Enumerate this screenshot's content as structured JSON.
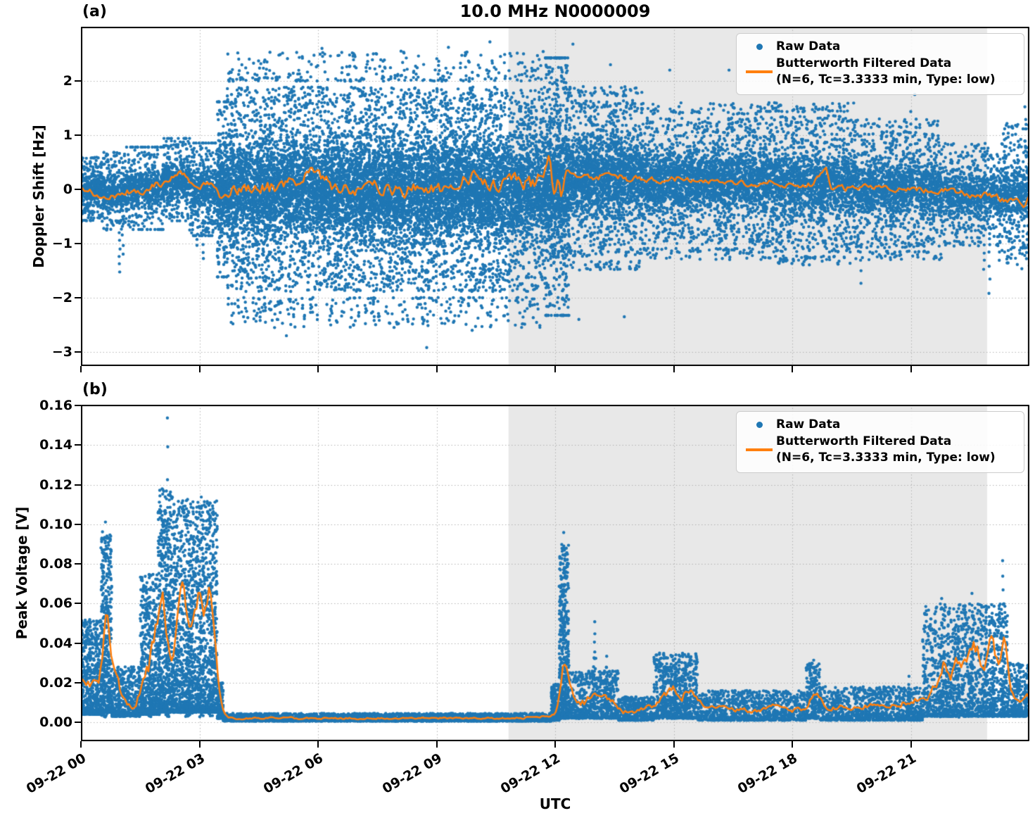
{
  "title": "10.0 MHz N0000009",
  "xlabel": "UTC",
  "colors": {
    "raw": "#1f77b4",
    "filtered": "#ff7f0e",
    "shade": "#e8e8e8",
    "grid": "#b5b5b5",
    "spine": "#000000",
    "background": "#ffffff"
  },
  "legend": {
    "raw_label": "Raw Data",
    "filtered_label": "Butterworth Filtered Data",
    "filtered_sublabel": "(N=6, Tc=3.3333 min, Type: low)"
  },
  "x_axis": {
    "label": "UTC",
    "range_hours": [
      0,
      24
    ],
    "tick_hours": [
      0,
      3,
      6,
      9,
      12,
      15,
      18,
      21
    ],
    "tick_labels": [
      "09-22 00",
      "09-22 03",
      "09-22 06",
      "09-22 09",
      "09-22 12",
      "09-22 15",
      "09-22 18",
      "09-22 21"
    ]
  },
  "shaded_region": {
    "start_hour": 10.82,
    "end_hour": 22.93
  },
  "chart_data": [
    {
      "type": "scatter",
      "panel_label": "(a)",
      "ylabel": "Doppler Shift [Hz]",
      "ylim": [
        -3.26,
        3.0
      ],
      "yticks": [
        2,
        1,
        0,
        -1,
        -2,
        -3
      ],
      "ytick_labels": [
        "2",
        "1",
        "0",
        "−1",
        "−2",
        "−3"
      ],
      "grid": true,
      "legend_position": "upper right",
      "dist": "gauss",
      "raw_segments": [
        [
          0,
          0.55,
          0,
          0.3,
          0.6,
          420
        ],
        [
          0.55,
          1.15,
          -0.05,
          0.35,
          0.75,
          420
        ],
        [
          1.15,
          2.1,
          0.02,
          0.4,
          0.7,
          650
        ],
        [
          2.1,
          2.75,
          0.18,
          0.4,
          0.75,
          480
        ],
        [
          2.75,
          3.45,
          0,
          0.45,
          0.85,
          500
        ],
        [
          3.45,
          3.7,
          0,
          0.85,
          1.6,
          420
        ],
        [
          3.7,
          11.75,
          0,
          1.05,
          2.55,
          11500
        ],
        [
          11.75,
          12.35,
          0.05,
          1.25,
          2.0,
          1100
        ],
        [
          12.35,
          14.2,
          0.2,
          0.8,
          1.7,
          2100
        ],
        [
          14.2,
          17.2,
          0.15,
          0.65,
          1.45,
          2700
        ],
        [
          17.2,
          19.6,
          0.1,
          0.7,
          1.5,
          2100
        ],
        [
          19.6,
          21.8,
          0,
          0.6,
          1.3,
          1800
        ],
        [
          21.8,
          23.3,
          -0.1,
          0.45,
          0.95,
          950
        ],
        [
          23.3,
          24,
          -0.12,
          0.65,
          1.35,
          480
        ]
      ],
      "streaks": [
        [
          0.98,
          -0.65,
          -1.55,
          7
        ],
        [
          1.06,
          -0.5,
          -1.2,
          5
        ],
        [
          2.95,
          -0.6,
          -1.05,
          5
        ],
        [
          3.1,
          -0.55,
          -1.3,
          6
        ],
        [
          19.3,
          0.7,
          1.5,
          5
        ],
        [
          19.73,
          -0.6,
          -1.75,
          6
        ],
        [
          21.0,
          0.8,
          1.45,
          4
        ],
        [
          22.85,
          -0.55,
          -1.45,
          7
        ],
        [
          22.99,
          -0.7,
          -1.9,
          6
        ],
        [
          23.25,
          -0.5,
          -1.3,
          6
        ],
        [
          23.9,
          0.7,
          1.5,
          5
        ]
      ],
      "extra_points": [
        [
          4.9,
          -2.55
        ],
        [
          5.2,
          -2.7
        ],
        [
          5.6,
          2.45
        ],
        [
          6.1,
          2.6
        ],
        [
          6.9,
          -2.5
        ],
        [
          7.4,
          2.5
        ],
        [
          8.1,
          2.55
        ],
        [
          8.75,
          -2.92
        ],
        [
          9.3,
          2.62
        ],
        [
          9.9,
          -2.6
        ],
        [
          10.35,
          2.72
        ],
        [
          11.2,
          2.5
        ],
        [
          12.45,
          2.68
        ],
        [
          12.6,
          -2.4
        ],
        [
          13.4,
          2.3
        ],
        [
          13.75,
          -2.35
        ],
        [
          14.9,
          2.2
        ],
        [
          16.4,
          2.2
        ],
        [
          17.9,
          2.05
        ],
        [
          21.1,
          1.75
        ]
      ],
      "filtered_anchors": [
        [
          0,
          0.05,
          0.12
        ],
        [
          0.3,
          -0.1,
          0.12
        ],
        [
          0.6,
          -0.18,
          0.12
        ],
        [
          0.9,
          -0.12,
          0.12
        ],
        [
          1.1,
          0,
          0.12
        ],
        [
          1.4,
          -0.05,
          0.12
        ],
        [
          1.7,
          0.05,
          0.12
        ],
        [
          2.0,
          0.1,
          0.12
        ],
        [
          2.3,
          0.25,
          0.1
        ],
        [
          2.5,
          0.38,
          0.08
        ],
        [
          2.7,
          0.1,
          0.1
        ],
        [
          2.9,
          -0.05,
          0.1
        ],
        [
          3.1,
          0.1,
          0.1
        ],
        [
          3.3,
          0.15,
          0.1
        ],
        [
          3.5,
          -0.15,
          0.15
        ],
        [
          3.8,
          0.05,
          0.22
        ],
        [
          4.5,
          0,
          0.22
        ],
        [
          5.2,
          0.05,
          0.22
        ],
        [
          5.9,
          0.3,
          0.22
        ],
        [
          6.5,
          0,
          0.22
        ],
        [
          7.2,
          0.05,
          0.22
        ],
        [
          7.9,
          -0.05,
          0.22
        ],
        [
          8.6,
          0.05,
          0.22
        ],
        [
          9.3,
          0,
          0.22
        ],
        [
          9.9,
          0.3,
          0.22
        ],
        [
          10.5,
          0.05,
          0.22
        ],
        [
          11.0,
          0.25,
          0.25
        ],
        [
          11.4,
          0.1,
          0.25
        ],
        [
          11.75,
          0.45,
          0.2
        ],
        [
          11.85,
          0.75,
          0.1
        ],
        [
          11.95,
          -0.5,
          0.1
        ],
        [
          12.05,
          0.4,
          0.1
        ],
        [
          12.15,
          -0.3,
          0.1
        ],
        [
          12.25,
          0.45,
          0.1
        ],
        [
          12.4,
          0.3,
          0.12
        ],
        [
          12.7,
          0.28,
          0.12
        ],
        [
          13,
          0.22,
          0.12
        ],
        [
          13.5,
          0.25,
          0.12
        ],
        [
          14,
          0.2,
          0.12
        ],
        [
          14.5,
          0.18,
          0.1
        ],
        [
          15,
          0.2,
          0.1
        ],
        [
          15.5,
          0.15,
          0.1
        ],
        [
          16,
          0.12,
          0.1
        ],
        [
          16.5,
          0.15,
          0.1
        ],
        [
          17,
          0.1,
          0.1
        ],
        [
          17.5,
          0.12,
          0.1
        ],
        [
          18,
          0.1,
          0.1
        ],
        [
          18.5,
          0.08,
          0.1
        ],
        [
          18.85,
          0.5,
          0.06
        ],
        [
          18.95,
          -0.1,
          0.08
        ],
        [
          19.1,
          0.05,
          0.1
        ],
        [
          19.5,
          0,
          0.1
        ],
        [
          20,
          0.05,
          0.1
        ],
        [
          20.5,
          0,
          0.1
        ],
        [
          21,
          0.02,
          0.1
        ],
        [
          21.5,
          -0.05,
          0.1
        ],
        [
          22,
          -0.02,
          0.1
        ],
        [
          22.5,
          -0.12,
          0.1
        ],
        [
          23,
          -0.1,
          0.1
        ],
        [
          23.3,
          -0.2,
          0.1
        ],
        [
          23.6,
          -0.15,
          0.1
        ],
        [
          23.85,
          -0.35,
          0.08
        ],
        [
          24,
          0.0,
          0.05
        ]
      ]
    },
    {
      "type": "scatter",
      "panel_label": "(b)",
      "ylabel": "Peak Voltage [V]",
      "ylim": [
        -0.0096,
        0.1604
      ],
      "yticks": [
        0.0,
        0.02,
        0.04,
        0.06,
        0.08,
        0.1,
        0.12,
        0.14,
        0.16
      ],
      "ytick_labels": [
        "0.00",
        "0.02",
        "0.04",
        "0.06",
        "0.08",
        "0.10",
        "0.12",
        "0.14",
        "0.16"
      ],
      "grid": true,
      "legend_position": "upper right",
      "dist": "bottom",
      "raw_segments": [
        [
          0,
          0.5,
          0.004,
          0.052,
          550
        ],
        [
          0.5,
          0.78,
          0.005,
          0.095,
          400
        ],
        [
          0.78,
          1.5,
          0.003,
          0.028,
          500
        ],
        [
          1.5,
          1.95,
          0.004,
          0.075,
          520
        ],
        [
          1.95,
          2.35,
          0.005,
          0.118,
          600
        ],
        [
          2.35,
          3.45,
          0.005,
          0.112,
          1400
        ],
        [
          3.45,
          3.6,
          0.002,
          0.02,
          150
        ],
        [
          3.6,
          11.9,
          0.0006,
          0.0045,
          2800
        ],
        [
          11.9,
          12.1,
          0.001,
          0.02,
          180
        ],
        [
          12.1,
          12.35,
          0.002,
          0.09,
          420
        ],
        [
          12.35,
          13.6,
          0.002,
          0.026,
          650
        ],
        [
          13.6,
          14.5,
          0.001,
          0.013,
          420
        ],
        [
          14.5,
          15.6,
          0.002,
          0.035,
          650
        ],
        [
          15.6,
          18.35,
          0.001,
          0.016,
          950
        ],
        [
          18.35,
          18.7,
          0.002,
          0.03,
          170
        ],
        [
          18.7,
          21.3,
          0.001,
          0.018,
          950
        ],
        [
          21.3,
          23.45,
          0.003,
          0.06,
          1300
        ],
        [
          23.45,
          24,
          0.003,
          0.03,
          300
        ]
      ],
      "spikes": [
        [
          0.55,
          0.095
        ],
        [
          0.62,
          0.101
        ],
        [
          1.72,
          0.075
        ],
        [
          2.0,
          0.08
        ],
        [
          2.19,
          0.153
        ],
        [
          2.7,
          0.113
        ],
        [
          2.78,
          0.102
        ],
        [
          3.05,
          0.115
        ],
        [
          3.28,
          0.112
        ],
        [
          12.22,
          0.097
        ],
        [
          13.0,
          0.05
        ],
        [
          13.3,
          0.032
        ],
        [
          14.75,
          0.035
        ],
        [
          15.05,
          0.033
        ],
        [
          15.3,
          0.028
        ],
        [
          18.55,
          0.032
        ],
        [
          20.95,
          0.022
        ],
        [
          21.78,
          0.063
        ],
        [
          21.95,
          0.055
        ],
        [
          22.2,
          0.052
        ],
        [
          22.55,
          0.065
        ],
        [
          22.9,
          0.055
        ],
        [
          23.05,
          0.06
        ],
        [
          23.33,
          0.082
        ]
      ],
      "streaks": [],
      "extra_points": [],
      "filtered_anchors": [
        [
          0,
          0.022,
          0.005
        ],
        [
          0.3,
          0.018,
          0.005
        ],
        [
          0.5,
          0.028,
          0.008
        ],
        [
          0.62,
          0.065,
          0.003
        ],
        [
          0.75,
          0.03,
          0.006
        ],
        [
          1.0,
          0.012,
          0.004
        ],
        [
          1.3,
          0.008,
          0.003
        ],
        [
          1.6,
          0.02,
          0.008
        ],
        [
          1.78,
          0.04,
          0.012
        ],
        [
          1.95,
          0.055,
          0.012
        ],
        [
          2.05,
          0.068,
          0.008
        ],
        [
          2.15,
          0.04,
          0.01
        ],
        [
          2.3,
          0.03,
          0.01
        ],
        [
          2.45,
          0.055,
          0.012
        ],
        [
          2.55,
          0.078,
          0.005
        ],
        [
          2.65,
          0.055,
          0.008
        ],
        [
          2.78,
          0.045,
          0.01
        ],
        [
          2.9,
          0.06,
          0.008
        ],
        [
          3.0,
          0.073,
          0.006
        ],
        [
          3.12,
          0.05,
          0.008
        ],
        [
          3.25,
          0.072,
          0.006
        ],
        [
          3.38,
          0.04,
          0.008
        ],
        [
          3.48,
          0.008,
          0.002
        ],
        [
          3.6,
          0.002,
          0.0008
        ],
        [
          5,
          0.002,
          0.0008
        ],
        [
          7,
          0.002,
          0.0008
        ],
        [
          9,
          0.002,
          0.0008
        ],
        [
          11,
          0.002,
          0.0008
        ],
        [
          11.9,
          0.003,
          0.001
        ],
        [
          12.05,
          0.008,
          0.002
        ],
        [
          12.2,
          0.037,
          0.003
        ],
        [
          12.32,
          0.02,
          0.004
        ],
        [
          12.5,
          0.008,
          0.003
        ],
        [
          12.9,
          0.012,
          0.004
        ],
        [
          13.1,
          0.014,
          0.004
        ],
        [
          13.35,
          0.011,
          0.003
        ],
        [
          13.7,
          0.005,
          0.002
        ],
        [
          14.1,
          0.006,
          0.002
        ],
        [
          14.5,
          0.009,
          0.003
        ],
        [
          14.75,
          0.015,
          0.004
        ],
        [
          15.0,
          0.017,
          0.004
        ],
        [
          15.2,
          0.012,
          0.004
        ],
        [
          15.35,
          0.019,
          0.004
        ],
        [
          15.6,
          0.009,
          0.003
        ],
        [
          15.9,
          0.008,
          0.002
        ],
        [
          16.3,
          0.007,
          0.002
        ],
        [
          16.7,
          0.006,
          0.002
        ],
        [
          17.1,
          0.006,
          0.002
        ],
        [
          17.5,
          0.008,
          0.002
        ],
        [
          17.9,
          0.006,
          0.002
        ],
        [
          18.3,
          0.007,
          0.002
        ],
        [
          18.55,
          0.017,
          0.003
        ],
        [
          18.8,
          0.007,
          0.002
        ],
        [
          19.2,
          0.008,
          0.002
        ],
        [
          19.6,
          0.007,
          0.002
        ],
        [
          20,
          0.009,
          0.002
        ],
        [
          20.4,
          0.008,
          0.002
        ],
        [
          20.8,
          0.01,
          0.003
        ],
        [
          21.2,
          0.012,
          0.003
        ],
        [
          21.5,
          0.014,
          0.004
        ],
        [
          21.8,
          0.03,
          0.008
        ],
        [
          22.0,
          0.024,
          0.007
        ],
        [
          22.2,
          0.034,
          0.008
        ],
        [
          22.4,
          0.028,
          0.008
        ],
        [
          22.6,
          0.04,
          0.009
        ],
        [
          22.8,
          0.024,
          0.007
        ],
        [
          23.0,
          0.04,
          0.009
        ],
        [
          23.2,
          0.028,
          0.008
        ],
        [
          23.35,
          0.044,
          0.008
        ],
        [
          23.5,
          0.014,
          0.004
        ],
        [
          23.7,
          0.011,
          0.003
        ],
        [
          24,
          0.013,
          0.004
        ]
      ]
    }
  ]
}
